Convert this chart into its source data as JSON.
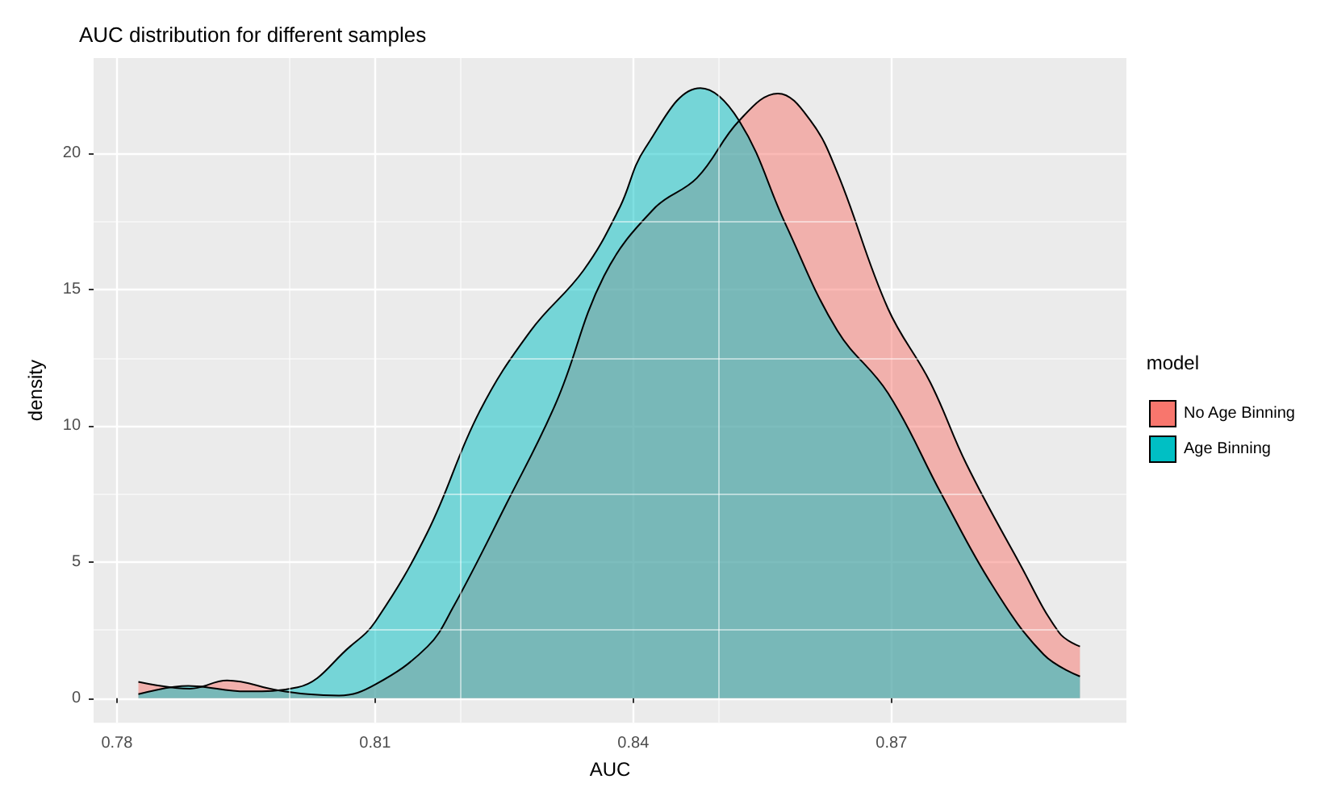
{
  "chart_data": {
    "type": "area",
    "title": "AUC distribution for different samples",
    "xlabel": "AUC",
    "ylabel": "density",
    "legend_title": "model",
    "legend": "right",
    "grid": true,
    "xlim": [
      0.7773,
      0.8973
    ],
    "xticks": [
      0.78,
      0.81,
      0.84,
      0.87
    ],
    "ylim": [
      -0.9,
      23.5
    ],
    "yticks": [
      0,
      5,
      10,
      15,
      20
    ],
    "series": [
      {
        "name": "No Age Binning",
        "color": "#f8766d",
        "x": [
          0.7825,
          0.7885,
          0.7928,
          0.7986,
          0.8022,
          0.8058,
          0.81,
          0.8161,
          0.819,
          0.8252,
          0.8311,
          0.8366,
          0.8425,
          0.8474,
          0.8523,
          0.8568,
          0.8606,
          0.8637,
          0.8696,
          0.8745,
          0.8787,
          0.8848,
          0.8895,
          0.8919
        ],
        "values": [
          0.6,
          0.35,
          0.65,
          0.3,
          0.15,
          0.1,
          0.5,
          1.9,
          3.3,
          7.1,
          10.9,
          15.5,
          18.0,
          19.1,
          21.2,
          22.2,
          21.2,
          19.3,
          14.3,
          11.6,
          8.6,
          5.0,
          2.4,
          1.9
        ]
      },
      {
        "name": "Age Binning",
        "color": "#00bfc4",
        "x": [
          0.7825,
          0.7883,
          0.795,
          0.801,
          0.8071,
          0.81,
          0.8161,
          0.8221,
          0.8281,
          0.8342,
          0.8384,
          0.8414,
          0.8478,
          0.8523,
          0.8577,
          0.8637,
          0.8696,
          0.8758,
          0.8818,
          0.8877,
          0.8919
        ],
        "values": [
          0.15,
          0.45,
          0.25,
          0.4,
          1.9,
          2.8,
          6.1,
          10.5,
          13.5,
          15.7,
          18.0,
          20.2,
          22.4,
          21.2,
          17.4,
          13.5,
          11.2,
          7.5,
          4.1,
          1.6,
          0.8
        ]
      }
    ]
  }
}
